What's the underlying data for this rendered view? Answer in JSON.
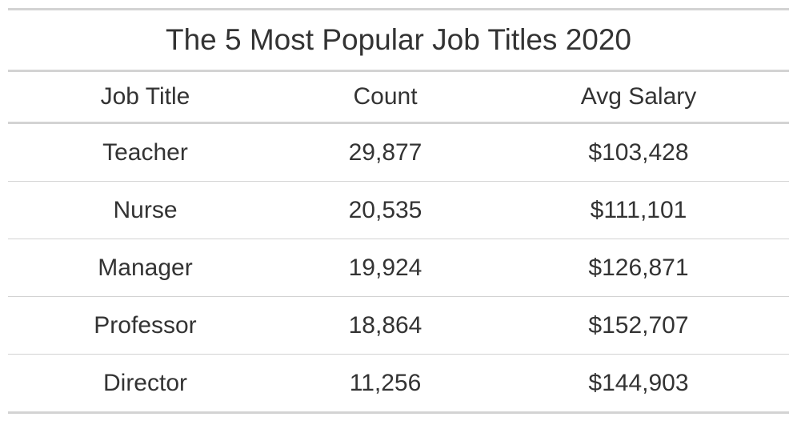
{
  "chart_data": {
    "type": "table",
    "title": "The 5 Most Popular Job Titles 2020",
    "columns": [
      "Job Title",
      "Count",
      "Avg Salary"
    ],
    "rows": [
      [
        "Teacher",
        "29,877",
        "$103,428"
      ],
      [
        "Nurse",
        "20,535",
        "$111,101"
      ],
      [
        "Manager",
        "19,924",
        "$126,871"
      ],
      [
        "Professor",
        "18,864",
        "$152,707"
      ],
      [
        "Director",
        "11,256",
        "$144,903"
      ]
    ]
  }
}
